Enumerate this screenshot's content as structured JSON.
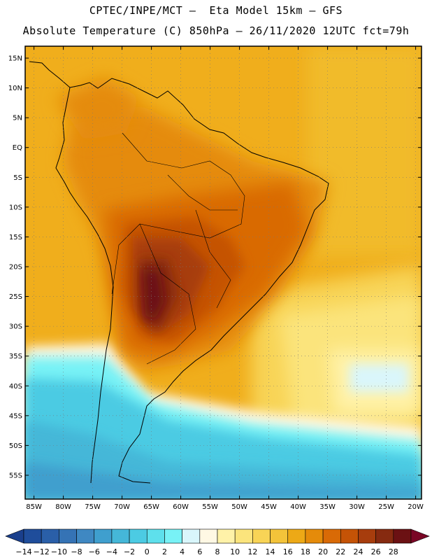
{
  "header": {
    "line1": "CPTEC/INPE/MCT –  Eta Model 15km – GFS",
    "line2": "Absolute Temperature (C) 850hPa – 26/11/2020 12UTC fct=79h"
  },
  "map": {
    "lat_labels": [
      "15N",
      "10N",
      "5N",
      "EQ",
      "5S",
      "10S",
      "15S",
      "20S",
      "25S",
      "30S",
      "35S",
      "40S",
      "45S",
      "50S",
      "55S"
    ],
    "lon_labels": [
      "85W",
      "80W",
      "75W",
      "70W",
      "65W",
      "60W",
      "55W",
      "50W",
      "45W",
      "40W",
      "35W",
      "30W",
      "25W",
      "20W"
    ],
    "lat_range": [
      17,
      -59
    ],
    "lon_range": [
      -86.5,
      -19
    ]
  },
  "colorbar": {
    "labels": [
      "-14",
      "-12",
      "-10",
      "-8",
      "-6",
      "-4",
      "-2",
      "0",
      "2",
      "4",
      "6",
      "8",
      "10",
      "12",
      "14",
      "16",
      "18",
      "20",
      "22",
      "24",
      "26",
      "28"
    ],
    "colors": [
      "#1a3f8c",
      "#1f4d9b",
      "#2a5fa8",
      "#3573b5",
      "#3f88c2",
      "#3f9fce",
      "#45b7d8",
      "#4ccbe3",
      "#5ee0ec",
      "#78f2f6",
      "#d9f6fb",
      "#fff8e4",
      "#fff2a8",
      "#fbe47c",
      "#f8d456",
      "#f3c33a",
      "#eda916",
      "#e58b0a",
      "#d96a06",
      "#c55306",
      "#a73d0d",
      "#862a10",
      "#6b1113",
      "#7a0625"
    ]
  }
}
